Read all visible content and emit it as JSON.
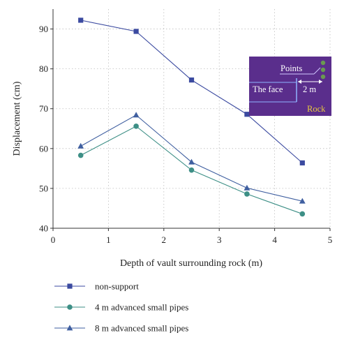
{
  "chart_data": {
    "type": "line",
    "xlabel": "Depth of vault surrounding rock (m)",
    "ylabel": "Displacement (cm)",
    "xlim": [
      0,
      5
    ],
    "ylim": [
      40,
      95
    ],
    "x_ticks": [
      0,
      1,
      2,
      3,
      4,
      5
    ],
    "y_ticks": [
      40,
      50,
      60,
      70,
      80,
      90
    ],
    "grid": true,
    "legend_position": "bottom",
    "x": [
      0.5,
      1.5,
      2.5,
      3.5,
      4.5
    ],
    "series": [
      {
        "name": "non-support",
        "marker": "square",
        "color": "#3b4aa0",
        "values": [
          92.2,
          89.4,
          77.2,
          68.6,
          56.4
        ]
      },
      {
        "name": "4 m advanced small pipes",
        "marker": "circle",
        "color": "#3d8f86",
        "values": [
          58.3,
          65.6,
          54.6,
          48.6,
          43.6
        ]
      },
      {
        "name": "8 m advanced small pipes",
        "marker": "triangle",
        "color": "#3f5fa0",
        "values": [
          60.6,
          68.4,
          56.6,
          50.1,
          46.8
        ]
      }
    ],
    "inset": {
      "points_label": "Points",
      "face_label": "The face",
      "distance_label": "2 m",
      "rock_label": "Rock",
      "background_color": "#5a2e8c",
      "text_color": "#ffffff",
      "rock_color": "#e8c840",
      "point_color": "#6a9a50"
    }
  }
}
